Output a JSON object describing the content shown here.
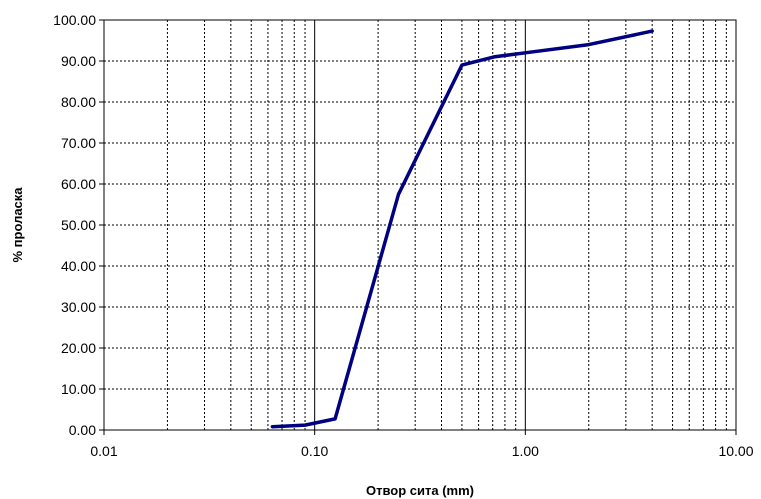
{
  "chart_data": {
    "type": "line",
    "title": "",
    "xlabel": "Отвор сита (mm)",
    "ylabel": "% пролаcка",
    "xscale": "log",
    "xlim": [
      0.01,
      10
    ],
    "ylim": [
      0,
      100
    ],
    "x_ticks": [
      "0.01",
      "0.10",
      "1.00",
      "10.00"
    ],
    "y_ticks": [
      "0.00",
      "10.00",
      "20.00",
      "30.00",
      "40.00",
      "50.00",
      "60.00",
      "70.00",
      "80.00",
      "90.00",
      "100.00"
    ],
    "grid": true,
    "legend": "none",
    "series": [
      {
        "color": "#000080",
        "x": [
          0.063,
          0.09,
          0.125,
          0.25,
          0.5,
          0.71,
          1.0,
          2.0,
          4.0
        ],
        "y": [
          0.8,
          1.2,
          2.7,
          57.5,
          89.0,
          91.0,
          92.0,
          94.0,
          97.3
        ]
      }
    ]
  }
}
